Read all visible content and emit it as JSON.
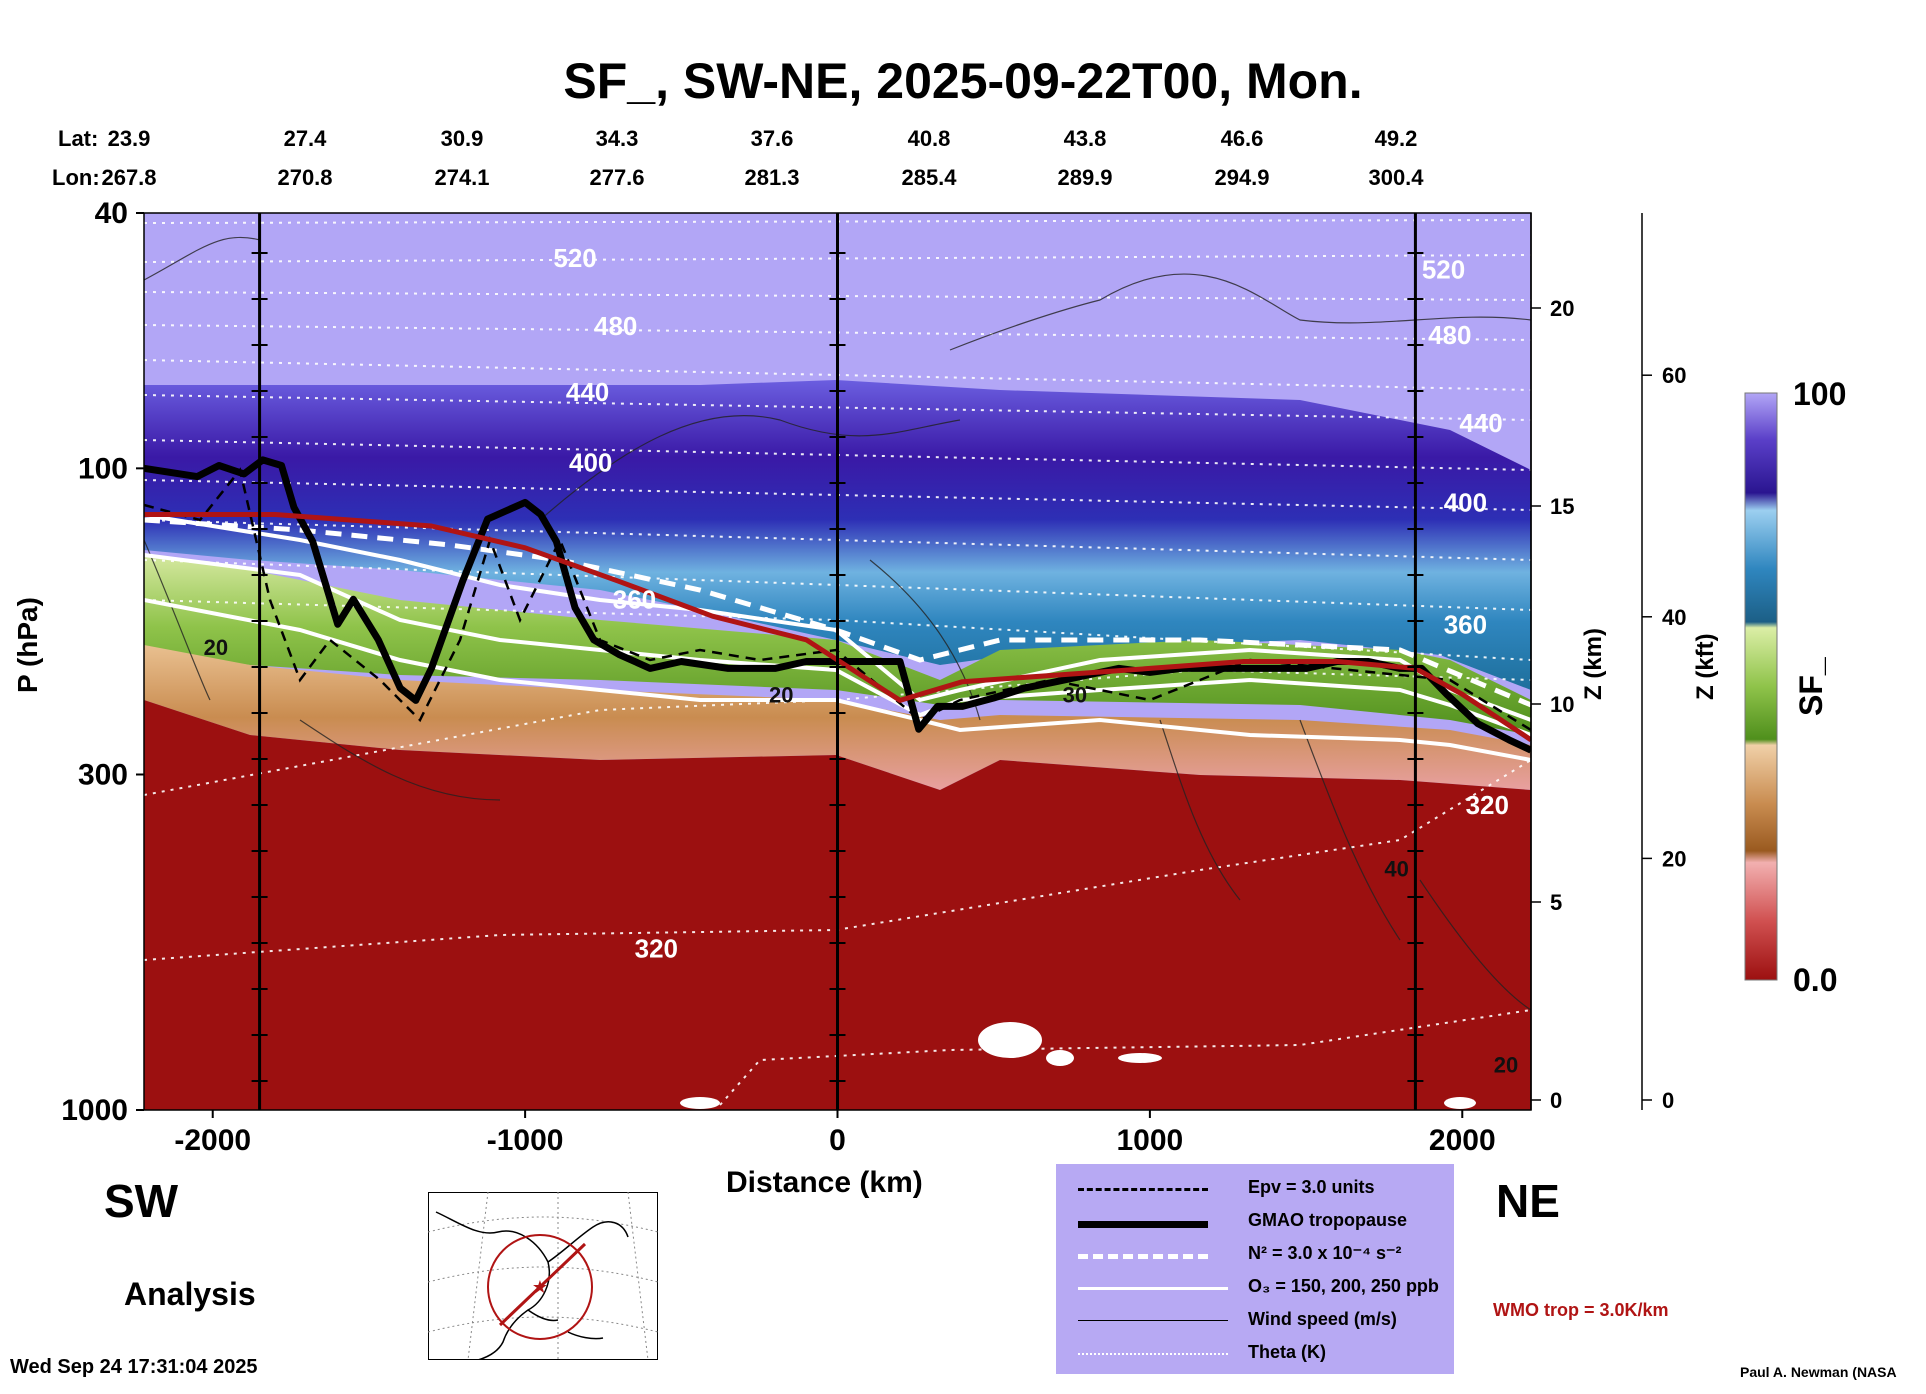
{
  "title": "SF_, SW-NE, 2025-09-22T00, Mon.",
  "lat_label": "Lat:",
  "lon_label": "Lon:",
  "lat_values": [
    "23.9",
    "27.4",
    "30.9",
    "34.3",
    "37.6",
    "40.8",
    "43.8",
    "46.6",
    "49.2"
  ],
  "lon_values": [
    "267.8",
    "270.8",
    "274.1",
    "277.6",
    "281.3",
    "285.4",
    "289.9",
    "294.9",
    "300.4"
  ],
  "left_direction": "SW",
  "right_direction": "NE",
  "analysis_label": "Analysis",
  "timestamp": "Wed Sep 24 17:31:04 2025",
  "credit": "Paul A. Newman (NASA",
  "wmo_label": "WMO trop = 3.0K/km",
  "colors": {
    "strat_purple": "#b2a6f6",
    "deep_purple": "#3a19a6",
    "blue": "#2f86bf",
    "green": "#6aa52a",
    "tan": "#c98c50",
    "trop_red": "#9c1010",
    "wmo_red": "#b01414",
    "legend_bg": "#b7a9f3"
  },
  "legend": [
    {
      "label": "Epv = 3.0 units",
      "style": "dashed-black-thin"
    },
    {
      "label": "GMAO tropopause",
      "style": "solid-black-thick"
    },
    {
      "label": "N² = 3.0 x 10⁻⁴ s⁻²",
      "style": "dashed-white-thick"
    },
    {
      "label": "O₃ = 150, 200, 250 ppb",
      "style": "solid-white"
    },
    {
      "label": "Wind speed (m/s)",
      "style": "solid-black-hair"
    },
    {
      "label": "Theta (K)",
      "style": "dotted-white"
    }
  ],
  "chart_data": {
    "type": "heatmap",
    "variable": "SF_",
    "xlabel": "Distance (km)",
    "ylabel": "P (hPa)",
    "right_axis_1_label": "Z (km)",
    "right_axis_2_label": "Z (kft)",
    "xlim": [
      -2220,
      2220
    ],
    "ylim": [
      1000,
      40
    ],
    "y_scale": "log",
    "x_ticks": [
      -2000,
      -1000,
      0,
      1000,
      2000
    ],
    "y_ticks": [
      40,
      100,
      300,
      1000
    ],
    "z_km_ticks": [
      0,
      5,
      10,
      15,
      20
    ],
    "z_kft_ticks": [
      0,
      20,
      40,
      60
    ],
    "colorbar": {
      "min_label": "0.0",
      "max_label": "100",
      "min": 0,
      "max": 100
    },
    "vertical_lines_km": [
      -1850,
      0,
      1850
    ],
    "theta_labels": [
      {
        "text": "520",
        "x": -840,
        "p": 47
      },
      {
        "text": "480",
        "x": -710,
        "p": 60
      },
      {
        "text": "440",
        "x": -800,
        "p": 76
      },
      {
        "text": "400",
        "x": -790,
        "p": 98
      },
      {
        "text": "360",
        "x": -650,
        "p": 160
      },
      {
        "text": "320",
        "x": -580,
        "p": 560
      },
      {
        "text": "520",
        "x": 1940,
        "p": 49
      },
      {
        "text": "480",
        "x": 1960,
        "p": 62
      },
      {
        "text": "440",
        "x": 2060,
        "p": 85
      },
      {
        "text": "400",
        "x": 2010,
        "p": 113
      },
      {
        "text": "360",
        "x": 2010,
        "p": 175
      },
      {
        "text": "320",
        "x": 2080,
        "p": 335
      }
    ],
    "wind_labels": [
      {
        "text": "20",
        "x": -1990,
        "p": 190
      },
      {
        "text": "20",
        "x": -180,
        "p": 225
      },
      {
        "text": "30",
        "x": 760,
        "p": 225
      },
      {
        "text": "40",
        "x": 1790,
        "p": 420
      },
      {
        "text": "20",
        "x": 2140,
        "p": 850
      }
    ],
    "gmao_tropopause": {
      "x": [
        -2220,
        -2050,
        -1980,
        -1900,
        -1840,
        -1780,
        -1740,
        -1680,
        -1600,
        -1550,
        -1470,
        -1400,
        -1350,
        -1300,
        -1200,
        -1120,
        -1000,
        -950,
        -900,
        -840,
        -780,
        -700,
        -600,
        -500,
        -350,
        -200,
        -100,
        0,
        200,
        260,
        320,
        400,
        500,
        600,
        700,
        800,
        900,
        1000,
        1100,
        1200,
        1300,
        1400,
        1500,
        1600,
        1700,
        1800,
        1870,
        1950,
        2050,
        2150,
        2220
      ],
      "p": [
        100,
        103,
        99,
        102,
        97,
        99,
        115,
        130,
        175,
        160,
        185,
        220,
        230,
        205,
        150,
        120,
        113,
        118,
        130,
        165,
        185,
        195,
        205,
        200,
        205,
        205,
        200,
        200,
        200,
        255,
        235,
        235,
        228,
        220,
        215,
        210,
        205,
        208,
        205,
        205,
        205,
        205,
        205,
        200,
        200,
        205,
        205,
        225,
        250,
        265,
        275
      ]
    },
    "wmo_tropopause": {
      "x": [
        -2220,
        -1800,
        -1300,
        -1000,
        -700,
        -400,
        -100,
        200,
        400,
        700,
        1000,
        1300,
        1600,
        1850,
        2000,
        2220
      ],
      "p": [
        118,
        118,
        123,
        133,
        150,
        170,
        185,
        230,
        215,
        210,
        205,
        200,
        200,
        205,
        225,
        265
      ]
    }
  }
}
